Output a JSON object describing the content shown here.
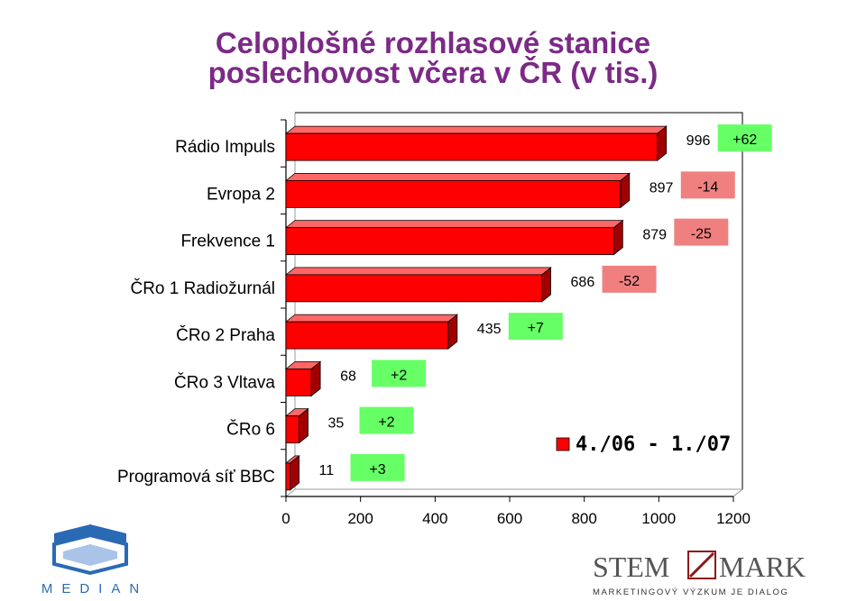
{
  "title_line1": "Celoplošné rozhlasové stanice",
  "title_line2": "poslechovost včera v ČR (v tis.)",
  "colors": {
    "title": "#7b2a86",
    "bar": "#ff0000",
    "bar_top": "#ff6666",
    "bar_side": "#a00000",
    "positive_change": "#66ff66",
    "negative_change": "#f08080",
    "accent_blue": "#2a6ab5"
  },
  "chart_data": {
    "type": "bar",
    "orientation": "horizontal",
    "categories": [
      "Rádio Impuls",
      "Evropa 2",
      "Frekvence 1",
      "ČRo 1 Radiožurnál",
      "ČRo 2 Praha",
      "ČRo 3 Vltava",
      "ČRo 6",
      "Programová síť BBC"
    ],
    "values": [
      996,
      897,
      879,
      686,
      435,
      68,
      35,
      11
    ],
    "value_labels": [
      "996",
      "897",
      "879",
      "686",
      "435",
      "68",
      "35",
      "11"
    ],
    "changes": [
      "+62",
      "-14",
      "-25",
      "-52",
      "+7",
      "+2",
      "+2",
      "+3"
    ],
    "xlim": [
      0,
      1200
    ],
    "xticks": [
      "0",
      "200",
      "400",
      "600",
      "800",
      "1000",
      "1200"
    ],
    "legend_label": "4./06 - 1./07",
    "legend_position": "bottom-right"
  },
  "logos": {
    "median_text": "MEDIAN",
    "stem_text": "STEM",
    "mark_text": "MARK",
    "stem_tagline": "MARKETINGOVÝ VÝZKUM JE DIALOG"
  }
}
